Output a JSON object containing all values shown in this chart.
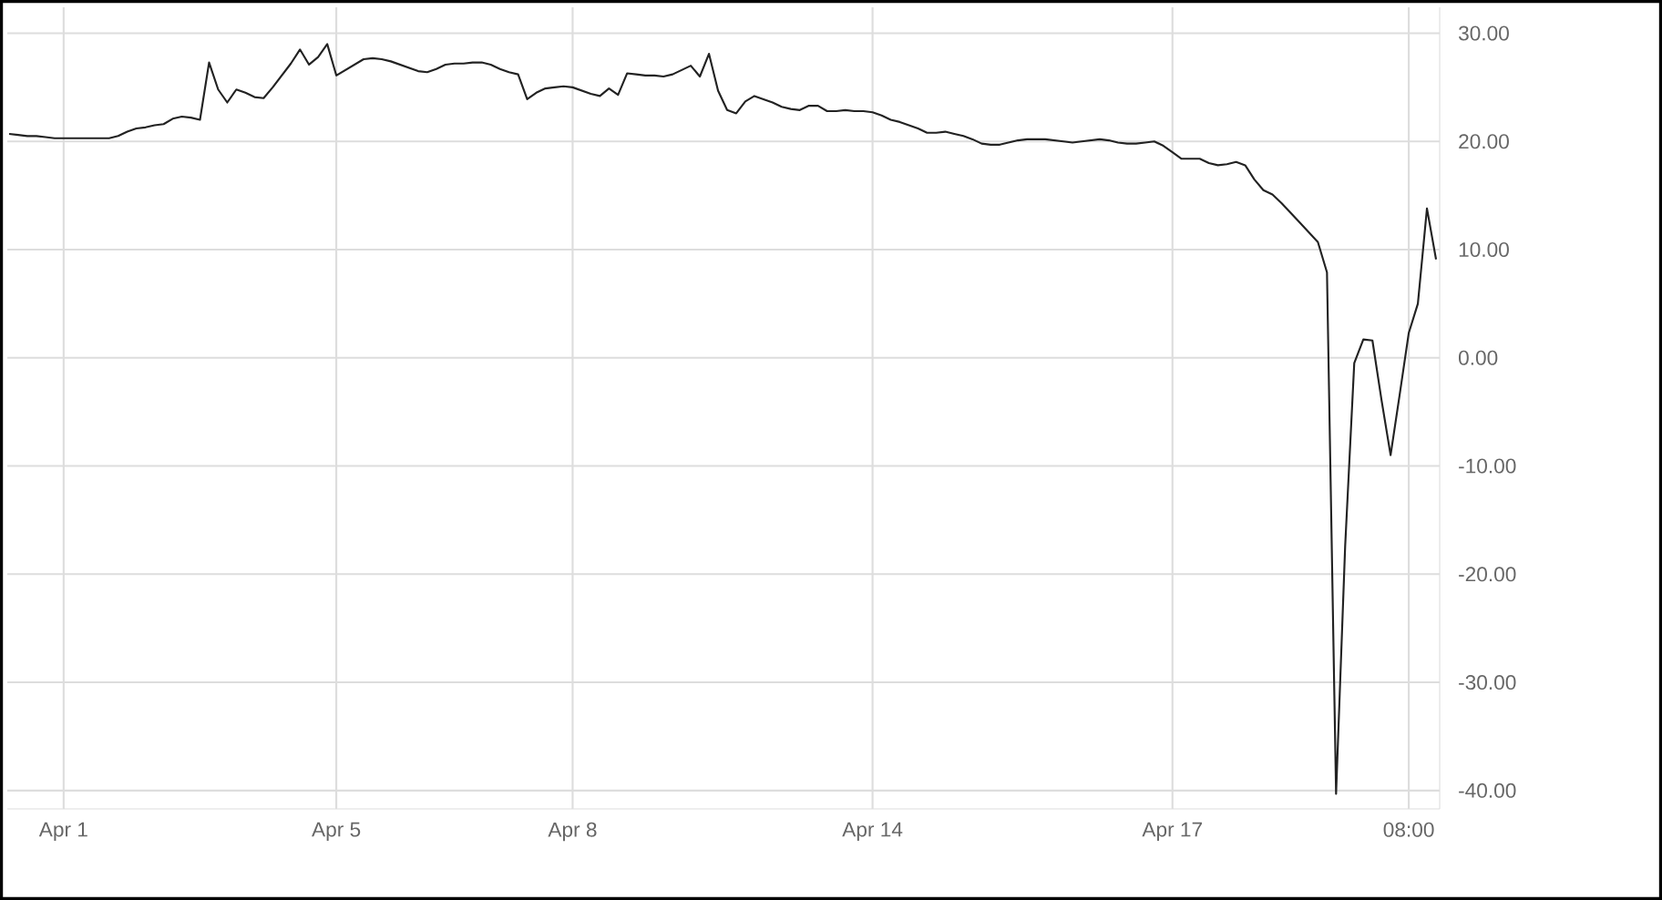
{
  "chart_data": {
    "type": "line",
    "categories": [
      null,
      null,
      null,
      null,
      null,
      null,
      "Apr 1",
      null,
      null,
      null,
      null,
      null,
      null,
      null,
      null,
      null,
      null,
      null,
      null,
      null,
      null,
      null,
      null,
      null,
      null,
      null,
      null,
      null,
      null,
      null,
      null,
      null,
      null,
      null,
      null,
      null,
      "Apr 5",
      null,
      null,
      null,
      null,
      null,
      null,
      null,
      null,
      null,
      null,
      null,
      null,
      null,
      null,
      null,
      null,
      null,
      null,
      null,
      null,
      null,
      null,
      null,
      null,
      null,
      "Apr 8",
      null,
      null,
      null,
      null,
      null,
      null,
      null,
      null,
      null,
      null,
      null,
      null,
      null,
      null,
      null,
      null,
      null,
      null,
      null,
      null,
      null,
      null,
      null,
      null,
      null,
      null,
      null,
      null,
      null,
      null,
      null,
      null,
      "Apr 14",
      null,
      null,
      null,
      null,
      null,
      null,
      null,
      null,
      null,
      null,
      null,
      null,
      null,
      null,
      null,
      null,
      null,
      null,
      null,
      null,
      null,
      null,
      null,
      null,
      null,
      null,
      null,
      null,
      null,
      null,
      null,
      null,
      "Apr 17",
      null,
      null,
      null,
      null,
      null,
      null,
      null,
      null,
      null,
      null,
      null,
      null,
      null,
      null,
      null,
      null,
      null,
      null,
      null,
      null,
      null,
      null,
      null,
      null,
      null,
      "08:00",
      null,
      null,
      null
    ],
    "series": [
      {
        "color": "#222222",
        "values": [
          20.7,
          20.6,
          20.5,
          20.5,
          20.4,
          20.3,
          20.3,
          20.3,
          20.3,
          20.3,
          20.3,
          20.3,
          20.5,
          20.9,
          21.2,
          21.3,
          21.5,
          21.6,
          22.1,
          22.3,
          22.2,
          22.0,
          27.3,
          24.8,
          23.6,
          24.8,
          24.5,
          24.1,
          24.0,
          25.0,
          26.1,
          27.2,
          28.5,
          27.1,
          27.8,
          29.0,
          26.1,
          26.6,
          27.1,
          27.6,
          27.7,
          27.6,
          27.4,
          27.1,
          26.8,
          26.5,
          26.4,
          26.7,
          27.1,
          27.2,
          27.2,
          27.3,
          27.3,
          27.1,
          26.7,
          26.4,
          26.2,
          23.9,
          24.5,
          24.9,
          25.0,
          25.1,
          25.0,
          24.7,
          24.4,
          24.2,
          24.9,
          24.3,
          26.3,
          26.2,
          26.1,
          26.1,
          26.0,
          26.2,
          26.6,
          27.0,
          26.0,
          28.1,
          24.7,
          22.9,
          22.6,
          23.7,
          24.2,
          23.9,
          23.6,
          23.2,
          23.0,
          22.9,
          23.3,
          23.3,
          22.8,
          22.8,
          22.9,
          22.8,
          22.8,
          22.7,
          22.4,
          22.0,
          21.8,
          21.5,
          21.2,
          20.8,
          20.8,
          20.9,
          20.7,
          20.5,
          20.2,
          19.8,
          19.7,
          19.7,
          19.9,
          20.1,
          20.2,
          20.2,
          20.2,
          20.1,
          20.0,
          19.9,
          20.0,
          20.1,
          20.2,
          20.1,
          19.9,
          19.8,
          19.8,
          19.9,
          20.0,
          19.6,
          19.0,
          18.4,
          18.4,
          18.4,
          18.0,
          17.8,
          17.9,
          18.1,
          17.8,
          16.5,
          15.5,
          15.1,
          14.3,
          13.4,
          12.5,
          11.6,
          10.7,
          7.9,
          -40.3,
          -17.4,
          -0.5,
          1.7,
          1.6,
          -3.9,
          -9.0,
          -3.4,
          2.3,
          5.0,
          13.8,
          9.1
        ]
      }
    ],
    "ylim": [
      -41.7,
      32.4
    ],
    "yticks": [
      {
        "value": 30,
        "label": "30.00"
      },
      {
        "value": 20,
        "label": "20.00"
      },
      {
        "value": 10,
        "label": "10.00"
      },
      {
        "value": 0,
        "label": "0.00"
      },
      {
        "value": -10,
        "label": "-10.00"
      },
      {
        "value": -20,
        "label": "-20.00"
      },
      {
        "value": -30,
        "label": "-30.00"
      },
      {
        "value": -40,
        "label": "-40.00"
      }
    ],
    "grid": true,
    "marker": "none",
    "line_style": "solid"
  }
}
